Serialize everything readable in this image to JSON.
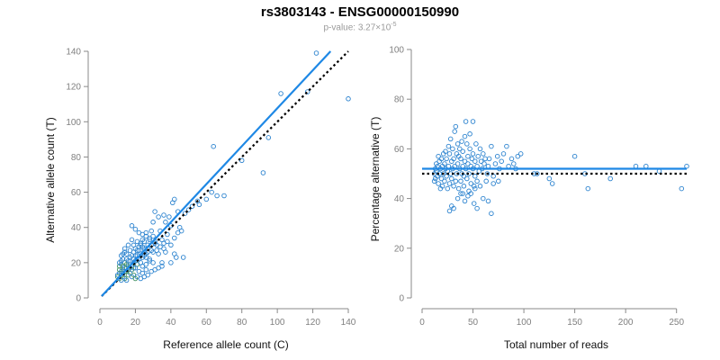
{
  "figure": {
    "title": "rs3803143 - ENSG00000150990",
    "subtitle_prefix": "p-value: 3.27×10",
    "subtitle_exponent": "-5"
  },
  "chart_data": [
    {
      "type": "scatter",
      "xlabel": "Reference allele count (C)",
      "ylabel": "Alternative allele count (T)",
      "xlim": [
        0,
        140
      ],
      "ylim": [
        0,
        140
      ],
      "xticks": [
        0,
        20,
        40,
        60,
        80,
        100,
        120,
        140
      ],
      "yticks": [
        0,
        20,
        40,
        60,
        80,
        100,
        120,
        140
      ],
      "grid": false,
      "colors": {
        "points": "#2c83cf",
        "points_secondary": "#3e8f5e",
        "fit_line": "#1e88e5",
        "reference_line": "#000000"
      },
      "points": [
        [
          122,
          139
        ],
        [
          102,
          116
        ],
        [
          117,
          117
        ],
        [
          140,
          113
        ],
        [
          95,
          91
        ],
        [
          92,
          71
        ],
        [
          80,
          78
        ],
        [
          64,
          86
        ],
        [
          63,
          60
        ],
        [
          66,
          58
        ],
        [
          70,
          58
        ],
        [
          55,
          55
        ],
        [
          42,
          56
        ],
        [
          41,
          54
        ],
        [
          44,
          49
        ],
        [
          39,
          46
        ],
        [
          36,
          47
        ],
        [
          31,
          49
        ],
        [
          33,
          46
        ],
        [
          30,
          43
        ],
        [
          37,
          43
        ],
        [
          40,
          41
        ],
        [
          45,
          40
        ],
        [
          34,
          38
        ],
        [
          29,
          38
        ],
        [
          30,
          35
        ],
        [
          35,
          33
        ],
        [
          38,
          36
        ],
        [
          28,
          34
        ],
        [
          26,
          37
        ],
        [
          22,
          37
        ],
        [
          18,
          41
        ],
        [
          20,
          39
        ],
        [
          24,
          36
        ],
        [
          27,
          30
        ],
        [
          32,
          30
        ],
        [
          31,
          32
        ],
        [
          36,
          28
        ],
        [
          33,
          25
        ],
        [
          37,
          26
        ],
        [
          42,
          25
        ],
        [
          43,
          23
        ],
        [
          47,
          23
        ],
        [
          40,
          20
        ],
        [
          35,
          20
        ],
        [
          30,
          20
        ],
        [
          28,
          22
        ],
        [
          26,
          25
        ],
        [
          22,
          27
        ],
        [
          20,
          24
        ],
        [
          19,
          30
        ],
        [
          21,
          32
        ],
        [
          23,
          30
        ],
        [
          25,
          28
        ],
        [
          18,
          33
        ],
        [
          16,
          30
        ],
        [
          14,
          28
        ],
        [
          13,
          25
        ],
        [
          12,
          24
        ],
        [
          15,
          22
        ],
        [
          17,
          21
        ],
        [
          19,
          20
        ],
        [
          21,
          19
        ],
        [
          23,
          20
        ],
        [
          24,
          18
        ],
        [
          20,
          17
        ],
        [
          18,
          16
        ],
        [
          16,
          18
        ],
        [
          14,
          20
        ],
        [
          12,
          19
        ],
        [
          11,
          18
        ],
        [
          13,
          16
        ],
        [
          15,
          15
        ],
        [
          17,
          14
        ],
        [
          19,
          13
        ],
        [
          21,
          12
        ],
        [
          23,
          11
        ],
        [
          25,
          12
        ],
        [
          27,
          13
        ],
        [
          29,
          15
        ],
        [
          31,
          16
        ],
        [
          33,
          17
        ],
        [
          35,
          18
        ],
        [
          26,
          19
        ],
        [
          28,
          21
        ],
        [
          11,
          14
        ],
        [
          12,
          13
        ],
        [
          13,
          12
        ],
        [
          14,
          11
        ],
        [
          15,
          10
        ],
        [
          11,
          11
        ],
        [
          12,
          10
        ],
        [
          10,
          12
        ],
        [
          13,
          14
        ],
        [
          14,
          15
        ],
        [
          15,
          17
        ],
        [
          16,
          16
        ],
        [
          17,
          17
        ],
        [
          18,
          18
        ],
        [
          19,
          17
        ],
        [
          20,
          21
        ],
        [
          21,
          22
        ],
        [
          22,
          22
        ],
        [
          24,
          23
        ],
        [
          25,
          24
        ],
        [
          26,
          23
        ],
        [
          27,
          26
        ],
        [
          29,
          27
        ],
        [
          30,
          26
        ],
        [
          32,
          27
        ],
        [
          34,
          29
        ],
        [
          36,
          31
        ],
        [
          38,
          32
        ],
        [
          22,
          15
        ],
        [
          24,
          14
        ],
        [
          26,
          16
        ],
        [
          16,
          13
        ],
        [
          18,
          12
        ],
        [
          20,
          11
        ],
        [
          12,
          15
        ],
        [
          11,
          16
        ],
        [
          10,
          13
        ],
        [
          13,
          18
        ],
        [
          14,
          17
        ],
        [
          15,
          19
        ],
        [
          16,
          21
        ],
        [
          17,
          23
        ],
        [
          18,
          24
        ],
        [
          19,
          26
        ],
        [
          20,
          28
        ],
        [
          21,
          27
        ],
        [
          22,
          29
        ],
        [
          23,
          31
        ],
        [
          24,
          33
        ],
        [
          25,
          32
        ],
        [
          15,
          25
        ],
        [
          14,
          26
        ],
        [
          13,
          22
        ],
        [
          12,
          21
        ],
        [
          11,
          20
        ],
        [
          17,
          27
        ],
        [
          19,
          22
        ],
        [
          21,
          24
        ],
        [
          23,
          25
        ],
        [
          25,
          26
        ],
        [
          27,
          28
        ],
        [
          29,
          30
        ],
        [
          31,
          31
        ],
        [
          28,
          33
        ],
        [
          26,
          35
        ],
        [
          24,
          29
        ],
        [
          40,
          30
        ],
        [
          42,
          34
        ],
        [
          44,
          37
        ],
        [
          46,
          38
        ],
        [
          48,
          48
        ],
        [
          50,
          50
        ],
        [
          52,
          52
        ],
        [
          56,
          53
        ],
        [
          60,
          56
        ]
      ],
      "fit_line": [
        [
          1,
          1
        ],
        [
          130,
          140
        ]
      ],
      "reference_line": [
        [
          1,
          1
        ],
        [
          140,
          140
        ]
      ]
    },
    {
      "type": "scatter",
      "xlabel": "Total number of reads",
      "ylabel": "Percentage alternative (T)",
      "xlim": [
        0,
        260
      ],
      "ylim": [
        0,
        100
      ],
      "xticks": [
        0,
        50,
        100,
        150,
        200,
        250
      ],
      "yticks": [
        0,
        20,
        40,
        60,
        80,
        100
      ],
      "grid": false,
      "colors": {
        "points": "#2c83cf",
        "fit_line": "#1e88e5",
        "reference_line": "#000000"
      },
      "fit_y": 52,
      "reference_y": 50,
      "points": [
        [
          260,
          53
        ],
        [
          255,
          44
        ],
        [
          233,
          51
        ],
        [
          220,
          53
        ],
        [
          210,
          53
        ],
        [
          185,
          48
        ],
        [
          163,
          44
        ],
        [
          160,
          50
        ],
        [
          150,
          57
        ],
        [
          128,
          46
        ],
        [
          125,
          48
        ],
        [
          113,
          50
        ],
        [
          110,
          50
        ],
        [
          97,
          58
        ],
        [
          94,
          57
        ],
        [
          92,
          52
        ],
        [
          90,
          54
        ],
        [
          88,
          56
        ],
        [
          85,
          53
        ],
        [
          83,
          61
        ],
        [
          80,
          58
        ],
        [
          78,
          55
        ],
        [
          76,
          52
        ],
        [
          74,
          57
        ],
        [
          72,
          54
        ],
        [
          70,
          49
        ],
        [
          68,
          61
        ],
        [
          66,
          56
        ],
        [
          65,
          53
        ],
        [
          64,
          50
        ],
        [
          63,
          47
        ],
        [
          62,
          56
        ],
        [
          61,
          54
        ],
        [
          60,
          58
        ],
        [
          59,
          52
        ],
        [
          58,
          55
        ],
        [
          57,
          60
        ],
        [
          56,
          51
        ],
        [
          55,
          57
        ],
        [
          54,
          53
        ],
        [
          54,
          47
        ],
        [
          53,
          62
        ],
        [
          52,
          55
        ],
        [
          52,
          49
        ],
        [
          51,
          45
        ],
        [
          51,
          38
        ],
        [
          50,
          71
        ],
        [
          50,
          58
        ],
        [
          50,
          52
        ],
        [
          49,
          56
        ],
        [
          48,
          53
        ],
        [
          48,
          46
        ],
        [
          47,
          66
        ],
        [
          47,
          60
        ],
        [
          46,
          50
        ],
        [
          46,
          43
        ],
        [
          45,
          54
        ],
        [
          45,
          57
        ],
        [
          44,
          62
        ],
        [
          44,
          48
        ],
        [
          43,
          52
        ],
        [
          43,
          71
        ],
        [
          42,
          65
        ],
        [
          42,
          55
        ],
        [
          41,
          49
        ],
        [
          41,
          45
        ],
        [
          40,
          59
        ],
        [
          40,
          53
        ],
        [
          39,
          63
        ],
        [
          39,
          50
        ],
        [
          38,
          56
        ],
        [
          38,
          47
        ],
        [
          37,
          60
        ],
        [
          37,
          52
        ],
        [
          36,
          57
        ],
        [
          36,
          44
        ],
        [
          35,
          54
        ],
        [
          35,
          62
        ],
        [
          34,
          50
        ],
        [
          34,
          58
        ],
        [
          33,
          69
        ],
        [
          33,
          47
        ],
        [
          32,
          53
        ],
        [
          32,
          67
        ],
        [
          31,
          45
        ],
        [
          31,
          56
        ],
        [
          30,
          60
        ],
        [
          30,
          52
        ],
        [
          29,
          48
        ],
        [
          29,
          55
        ],
        [
          28,
          64
        ],
        [
          28,
          50
        ],
        [
          27,
          58
        ],
        [
          27,
          46
        ],
        [
          26,
          53
        ],
        [
          26,
          61
        ],
        [
          25,
          51
        ],
        [
          25,
          44
        ],
        [
          24,
          56
        ],
        [
          24,
          49
        ],
        [
          23,
          59
        ],
        [
          23,
          52
        ],
        [
          22,
          54
        ],
        [
          22,
          47
        ],
        [
          21,
          58
        ],
        [
          21,
          50
        ],
        [
          20,
          53
        ],
        [
          20,
          45
        ],
        [
          19,
          56
        ],
        [
          19,
          48
        ],
        [
          18,
          52
        ],
        [
          18,
          44
        ],
        [
          17,
          55
        ],
        [
          17,
          50
        ],
        [
          16,
          57
        ],
        [
          16,
          46
        ],
        [
          15,
          53
        ],
        [
          15,
          49
        ],
        [
          14,
          51
        ],
        [
          14,
          54
        ],
        [
          13,
          48
        ],
        [
          13,
          52
        ],
        [
          12,
          50
        ],
        [
          12,
          47
        ],
        [
          27,
          35
        ],
        [
          29,
          37
        ],
        [
          31,
          36
        ],
        [
          35,
          40
        ],
        [
          40,
          42
        ],
        [
          45,
          41
        ],
        [
          54,
          36
        ],
        [
          57,
          45
        ],
        [
          60,
          40
        ],
        [
          65,
          39
        ],
        [
          68,
          34
        ],
        [
          70,
          46
        ],
        [
          75,
          47
        ],
        [
          48,
          42
        ],
        [
          52,
          44
        ],
        [
          42,
          39
        ],
        [
          38,
          42
        ]
      ],
      "fit_line": [
        [
          0,
          52
        ],
        [
          260,
          52
        ]
      ],
      "reference_line": [
        [
          0,
          50
        ],
        [
          260,
          50
        ]
      ]
    }
  ]
}
